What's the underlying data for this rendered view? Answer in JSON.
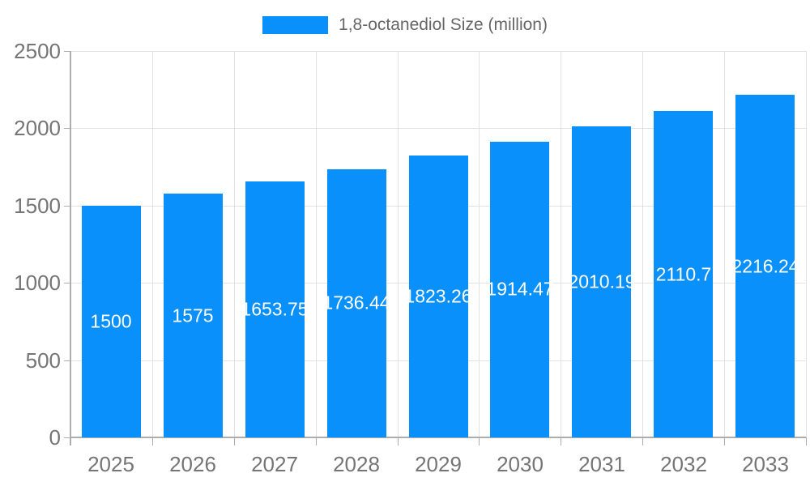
{
  "legend": {
    "label": "1,8-octanediol Size (million)"
  },
  "chart_data": {
    "type": "bar",
    "title": "1,8-octanediol Size (million)",
    "categories": [
      "2025",
      "2026",
      "2027",
      "2028",
      "2029",
      "2030",
      "2031",
      "2032",
      "2033"
    ],
    "values": [
      1500,
      1575,
      1653.75,
      1736.44,
      1823.26,
      1914.47,
      2010.19,
      2110.7,
      2216.24
    ],
    "value_labels": [
      "1500",
      "1575",
      "1653.75",
      "1736.44",
      "1823.26",
      "1914.47",
      "2010.19",
      "2110.7",
      "2216.24"
    ],
    "xlabel": "",
    "ylabel": "",
    "ylim": [
      0,
      2500
    ],
    "yticks": [
      0,
      500,
      1000,
      1500,
      2000,
      2500
    ],
    "grid": true,
    "legend_position": "top",
    "colors": {
      "bar": "#0990FB",
      "grid": "#e2e2e2",
      "axis_line": "#adadad",
      "axis_label": "#757575",
      "legend_text": "#666666",
      "value_label": "#ffffff",
      "background": "#ffffff"
    }
  }
}
